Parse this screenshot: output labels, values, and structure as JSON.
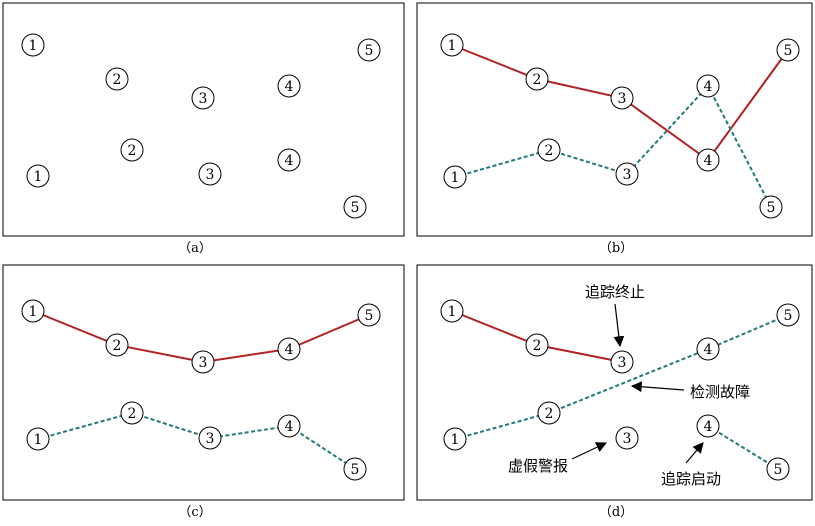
{
  "panels": [
    {
      "caption": "（a）",
      "nodes": [
        {
          "label": "1"
        },
        {
          "label": "2"
        },
        {
          "label": "3"
        },
        {
          "label": "4"
        },
        {
          "label": "5"
        },
        {
          "label": "1"
        },
        {
          "label": "2"
        },
        {
          "label": "3"
        },
        {
          "label": "4"
        },
        {
          "label": "5"
        }
      ],
      "tracks": [],
      "annotations": []
    },
    {
      "caption": "（b）",
      "nodes": [
        {
          "label": "1"
        },
        {
          "label": "2"
        },
        {
          "label": "3"
        },
        {
          "label": "4"
        },
        {
          "label": "5"
        },
        {
          "label": "1"
        },
        {
          "label": "2"
        },
        {
          "label": "3"
        },
        {
          "label": "4"
        },
        {
          "label": "5"
        }
      ],
      "tracks": [
        {
          "style": "solid",
          "color": "#b22222",
          "nodes": [
            0,
            1,
            2,
            8,
            4
          ]
        },
        {
          "style": "dashed",
          "color": "#1f7a7a",
          "nodes": [
            5,
            6,
            7,
            3,
            9
          ]
        }
      ],
      "annotations": []
    },
    {
      "caption": "（c）",
      "nodes": [
        {
          "label": "1"
        },
        {
          "label": "2"
        },
        {
          "label": "3"
        },
        {
          "label": "4"
        },
        {
          "label": "5"
        },
        {
          "label": "1"
        },
        {
          "label": "2"
        },
        {
          "label": "3"
        },
        {
          "label": "4"
        },
        {
          "label": "5"
        }
      ],
      "tracks": [
        {
          "style": "solid",
          "color": "#b22222",
          "nodes": [
            0,
            1,
            2,
            3,
            4
          ]
        },
        {
          "style": "dashed",
          "color": "#1f7a7a",
          "nodes": [
            5,
            6,
            7,
            8,
            9
          ]
        }
      ],
      "annotations": []
    },
    {
      "caption": "（d）",
      "nodes": [
        {
          "label": "1"
        },
        {
          "label": "2"
        },
        {
          "label": "3"
        },
        {
          "label": "4"
        },
        {
          "label": "5"
        },
        {
          "label": "1"
        },
        {
          "label": "2"
        },
        {
          "label": "3"
        },
        {
          "label": "4"
        },
        {
          "label": "5"
        }
      ],
      "tracks": [
        {
          "style": "solid",
          "color": "#b22222",
          "nodes": [
            0,
            1,
            2
          ]
        },
        {
          "style": "dashed",
          "color": "#1f7a7a",
          "nodes": [
            5,
            6,
            3,
            4
          ]
        },
        {
          "style": "dashed",
          "color": "#1f7a7a",
          "nodes": [
            8,
            9
          ]
        }
      ],
      "annotations": [
        {
          "text": "追踪终止"
        },
        {
          "text": "检测故障"
        },
        {
          "text": "虚假警报"
        },
        {
          "text": "追踪启动"
        }
      ]
    }
  ]
}
